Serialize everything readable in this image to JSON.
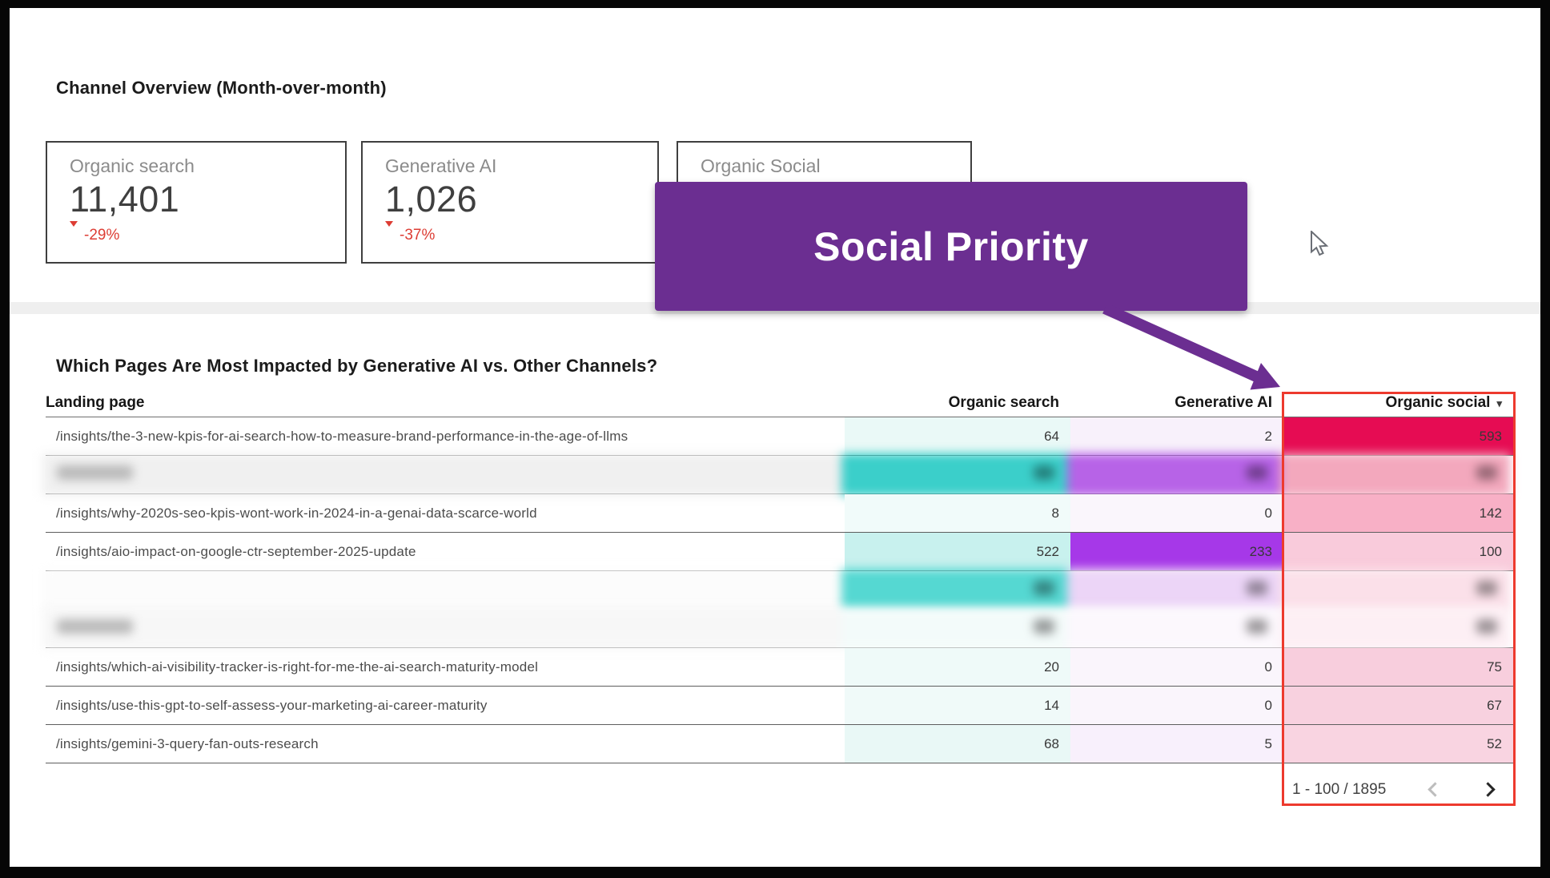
{
  "section_overview": {
    "title": "Channel Overview (Month-over-month)",
    "scorecards": [
      {
        "label": "Organic search",
        "value": "11,401",
        "delta": "-29%"
      },
      {
        "label": "Generative AI",
        "value": "1,026",
        "delta": "-37%"
      },
      {
        "label": "Organic Social",
        "value": "",
        "delta": ""
      }
    ]
  },
  "banner": {
    "text": "Social Priority",
    "color": "#6b2e91"
  },
  "table": {
    "title": "Which Pages Are Most Impacted by Generative AI vs. Other Channels?",
    "columns": {
      "landing": "Landing page",
      "search": "Organic search",
      "genai": "Generative AI",
      "social": "Organic social"
    },
    "sort": {
      "column": "Organic social",
      "direction": "desc",
      "indicator": "▾"
    },
    "rows": [
      {
        "page": "/insights/the-3-new-kpis-for-ai-search-how-to-measure-brand-performance-in-the-age-of-llms",
        "search": "64",
        "genai": "2",
        "social": "593",
        "redacted": false,
        "colors": {
          "search": "#eaf9f7",
          "genai": "#f8f1fb",
          "social": "#e60c53"
        }
      },
      {
        "page": "",
        "search": "",
        "genai": "",
        "social": "",
        "redacted": true,
        "landing_blob": true,
        "colors": {
          "search": "#3bcfca",
          "genai": "#b763e7",
          "social": "#f3a8bd"
        },
        "landing_bg": "#f0f0f0"
      },
      {
        "page": "/insights/why-2020s-seo-kpis-wont-work-in-2024-in-a-genai-data-scarce-world",
        "search": "8",
        "genai": "0",
        "social": "142",
        "redacted": false,
        "colors": {
          "search": "#f1fbfa",
          "genai": "#faf6fc",
          "social": "#f8b0c6"
        }
      },
      {
        "page": "/insights/aio-impact-on-google-ctr-september-2025-update",
        "search": "522",
        "genai": "233",
        "social": "100",
        "redacted": false,
        "colors": {
          "search": "#c8f1ee",
          "genai": "#a638e8",
          "social": "#f9cbdb"
        }
      },
      {
        "page": "",
        "search": "",
        "genai": "",
        "social": "",
        "redacted": true,
        "divider": false,
        "colors": {
          "search": "#55d8d2",
          "genai": "#ecd5f7",
          "social": "#fbe0e9"
        },
        "landing_bg": "#fcfcfc"
      },
      {
        "page": "",
        "search": "",
        "genai": "",
        "social": "",
        "redacted": true,
        "landing_blob": true,
        "colors": {
          "search": "#f3fbfa",
          "genai": "#fcf8fd",
          "social": "#fdeff4"
        },
        "landing_bg": "#f7f7f7"
      },
      {
        "page": "/insights/which-ai-visibility-tracker-is-right-for-me-the-ai-search-maturity-model",
        "search": "20",
        "genai": "0",
        "social": "75",
        "redacted": false,
        "colors": {
          "search": "#effaf9",
          "genai": "#faf5fc",
          "social": "#f8cedd"
        }
      },
      {
        "page": "/insights/use-this-gpt-to-self-assess-your-marketing-ai-career-maturity",
        "search": "14",
        "genai": "0",
        "social": "67",
        "redacted": false,
        "colors": {
          "search": "#f0faf9",
          "genai": "#faf5fc",
          "social": "#f8d1df"
        }
      },
      {
        "page": "/insights/gemini-3-query-fan-outs-research",
        "search": "68",
        "genai": "5",
        "social": "52",
        "redacted": false,
        "colors": {
          "search": "#e9f8f6",
          "genai": "#f8f0fc",
          "social": "#f9d4e1"
        }
      }
    ],
    "pagination": {
      "range": "1 - 100 / 1895"
    }
  },
  "icons": {
    "delta": "arrow-down-icon",
    "sort": "caret-down-icon",
    "prev": "chevron-left-icon",
    "next": "chevron-right-icon",
    "cursor": "mouse-pointer-icon"
  },
  "colors": {
    "banner_purple": "#6b2e91",
    "delta_negative_red": "#dd3d34",
    "highlight_box_red": "#ed3a2e",
    "teal_scale_max": "#3bcfca",
    "purple_scale_max": "#a638e8",
    "pink_scale_max": "#e60c53"
  }
}
